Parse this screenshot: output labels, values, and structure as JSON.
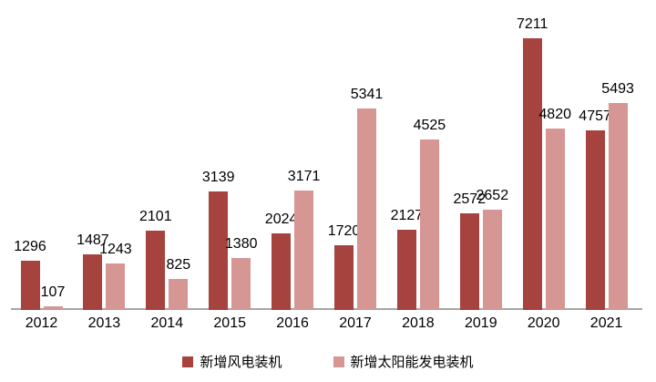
{
  "chart_data": {
    "type": "bar",
    "title": "",
    "xlabel": "",
    "ylabel": "",
    "categories": [
      "2012",
      "2013",
      "2014",
      "2015",
      "2016",
      "2017",
      "2018",
      "2019",
      "2020",
      "2021"
    ],
    "series": [
      {
        "name": "新增风电装机",
        "color": "#A6433E",
        "values": [
          1296,
          1487,
          2101,
          3139,
          2024,
          1720,
          2127,
          2572,
          7211,
          4757
        ]
      },
      {
        "name": "新增太阳能发电装机",
        "color": "#D59694",
        "values": [
          107,
          1243,
          825,
          1380,
          3171,
          5341,
          4525,
          2652,
          4820,
          5493
        ]
      }
    ],
    "data_labels": true,
    "legend_position": "bottom",
    "gridlines": false,
    "y_axis_visible": false,
    "axis_color": "#A6A6A6",
    "label_color": "#000000",
    "background_color": "#FFFFFF"
  }
}
